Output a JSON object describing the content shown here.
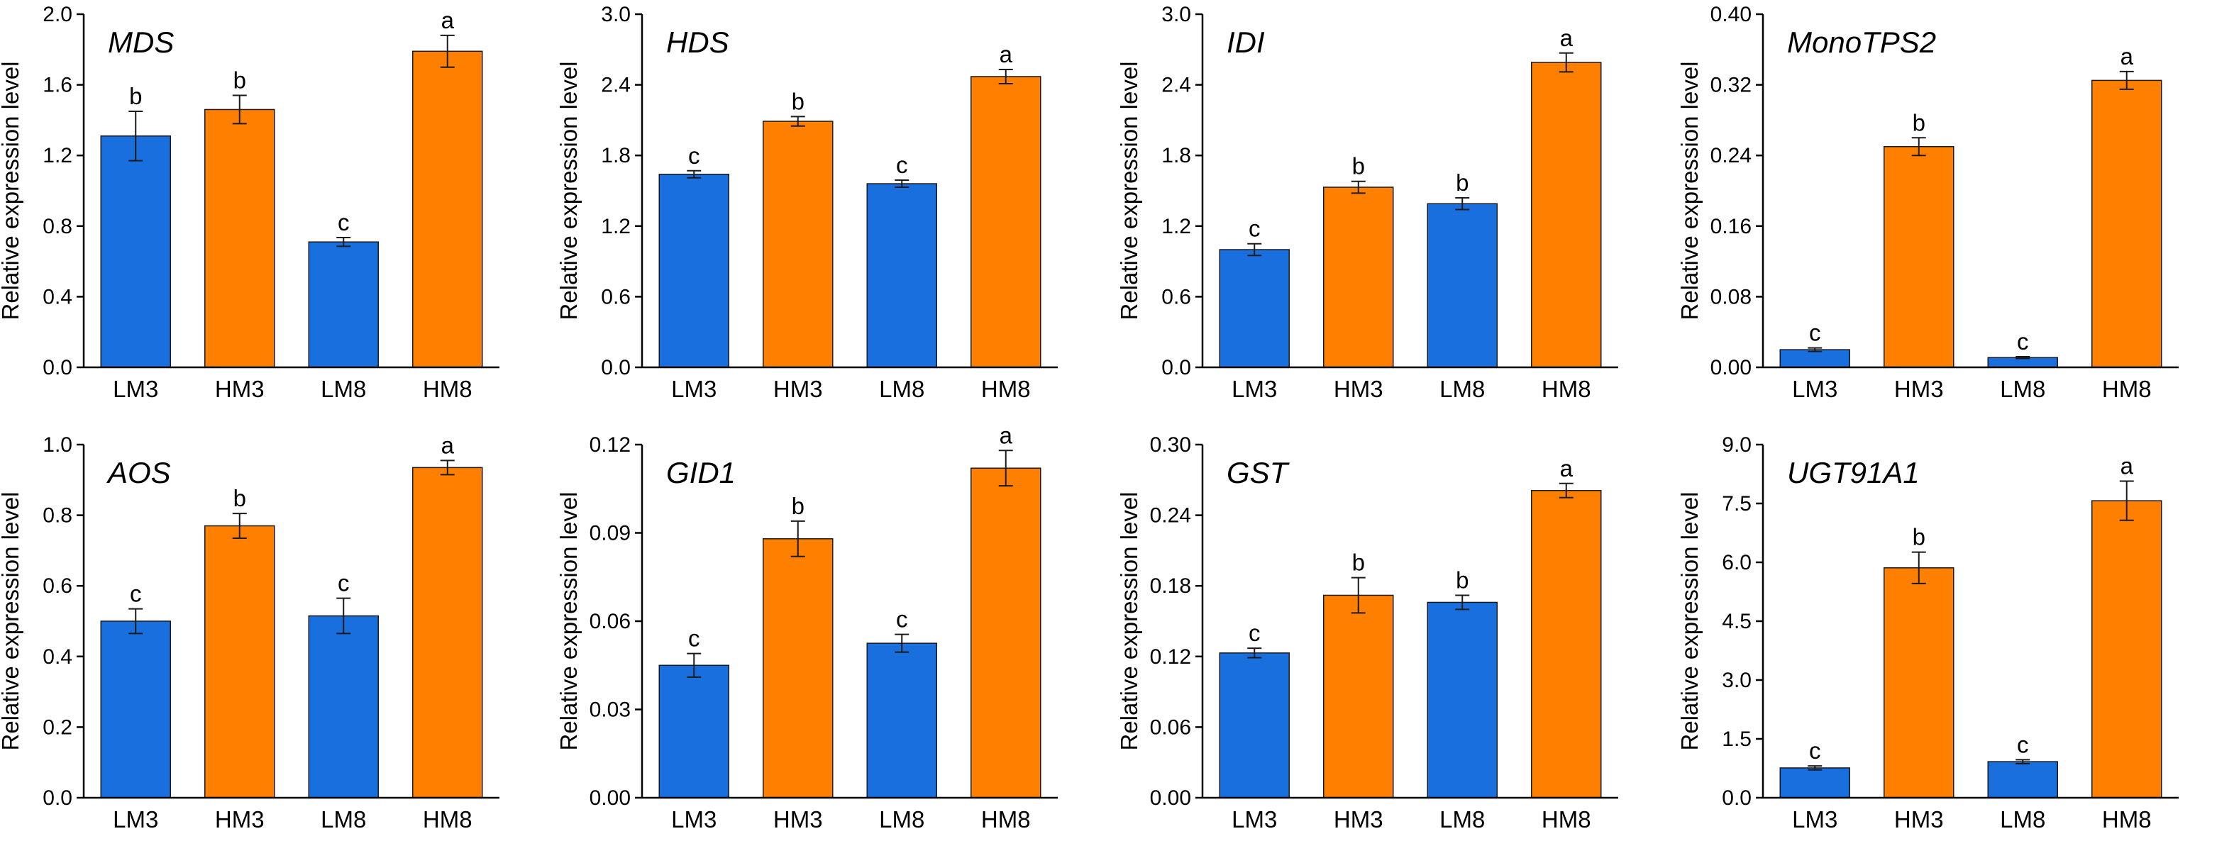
{
  "colors": {
    "low": "#1a6fdf",
    "high": "#ff8000"
  },
  "chart_data": [
    {
      "type": "bar",
      "title": "MDS",
      "ylabel": "Relative expression level",
      "categories": [
        "LM3",
        "HM3",
        "LM8",
        "HM8"
      ],
      "group": [
        "low",
        "high",
        "low",
        "high"
      ],
      "values": [
        1.31,
        1.46,
        0.71,
        1.79
      ],
      "errors": [
        0.14,
        0.08,
        0.025,
        0.09
      ],
      "significance": [
        "b",
        "b",
        "c",
        "a"
      ],
      "ylim": [
        0,
        2.0
      ],
      "yticks": [
        "0.0",
        "0.4",
        "0.8",
        "1.2",
        "1.6",
        "2.0"
      ]
    },
    {
      "type": "bar",
      "title": "HDS",
      "ylabel": "Relative expression level",
      "categories": [
        "LM3",
        "HM3",
        "LM8",
        "HM8"
      ],
      "group": [
        "low",
        "high",
        "low",
        "high"
      ],
      "values": [
        1.64,
        2.09,
        1.56,
        2.47
      ],
      "errors": [
        0.03,
        0.04,
        0.03,
        0.06
      ],
      "significance": [
        "c",
        "b",
        "c",
        "a"
      ],
      "ylim": [
        0,
        3.0
      ],
      "yticks": [
        "0.0",
        "0.6",
        "1.2",
        "1.8",
        "2.4",
        "3.0"
      ]
    },
    {
      "type": "bar",
      "title": "IDI",
      "ylabel": "Relative expression level",
      "categories": [
        "LM3",
        "HM3",
        "LM8",
        "HM8"
      ],
      "group": [
        "low",
        "high",
        "low",
        "high"
      ],
      "values": [
        1.0,
        1.53,
        1.39,
        2.59
      ],
      "errors": [
        0.05,
        0.05,
        0.05,
        0.08
      ],
      "significance": [
        "c",
        "b",
        "b",
        "a"
      ],
      "ylim": [
        0,
        3.0
      ],
      "yticks": [
        "0.0",
        "0.6",
        "1.2",
        "1.8",
        "2.4",
        "3.0"
      ]
    },
    {
      "type": "bar",
      "title": "MonoTPS2",
      "ylabel": "Relative expression level",
      "categories": [
        "LM3",
        "HM3",
        "LM8",
        "HM8"
      ],
      "group": [
        "low",
        "high",
        "low",
        "high"
      ],
      "values": [
        0.02,
        0.25,
        0.011,
        0.325
      ],
      "errors": [
        0.002,
        0.01,
        0.001,
        0.01
      ],
      "significance": [
        "c",
        "b",
        "c",
        "a"
      ],
      "ylim": [
        0,
        0.4
      ],
      "yticks": [
        "0.00",
        "0.08",
        "0.16",
        "0.24",
        "0.32",
        "0.40"
      ]
    },
    {
      "type": "bar",
      "title": "AOS",
      "ylabel": "Relative expression level",
      "categories": [
        "LM3",
        "HM3",
        "LM8",
        "HM8"
      ],
      "group": [
        "low",
        "high",
        "low",
        "high"
      ],
      "values": [
        0.5,
        0.77,
        0.515,
        0.935
      ],
      "errors": [
        0.035,
        0.035,
        0.05,
        0.02
      ],
      "significance": [
        "c",
        "b",
        "c",
        "a"
      ],
      "ylim": [
        0,
        1.0
      ],
      "yticks": [
        "0.0",
        "0.2",
        "0.4",
        "0.6",
        "0.8",
        "1.0"
      ]
    },
    {
      "type": "bar",
      "title": "GID1",
      "ylabel": "Relative expression level",
      "categories": [
        "LM3",
        "HM3",
        "LM8",
        "HM8"
      ],
      "group": [
        "low",
        "high",
        "low",
        "high"
      ],
      "values": [
        0.045,
        0.088,
        0.0525,
        0.112
      ],
      "errors": [
        0.004,
        0.006,
        0.003,
        0.006
      ],
      "significance": [
        "c",
        "b",
        "c",
        "a"
      ],
      "ylim": [
        0,
        0.12
      ],
      "yticks": [
        "0.00",
        "0.03",
        "0.06",
        "0.09",
        "0.12"
      ]
    },
    {
      "type": "bar",
      "title": "GST",
      "ylabel": "Relative expression level",
      "categories": [
        "LM3",
        "HM3",
        "LM8",
        "HM8"
      ],
      "group": [
        "low",
        "high",
        "low",
        "high"
      ],
      "values": [
        0.123,
        0.172,
        0.166,
        0.261
      ],
      "errors": [
        0.004,
        0.015,
        0.006,
        0.006
      ],
      "significance": [
        "c",
        "b",
        "b",
        "a"
      ],
      "ylim": [
        0,
        0.3
      ],
      "yticks": [
        "0.00",
        "0.06",
        "0.12",
        "0.18",
        "0.24",
        "0.30"
      ]
    },
    {
      "type": "bar",
      "title": "UGT91A1",
      "ylabel": "Relative expression level",
      "categories": [
        "LM3",
        "HM3",
        "LM8",
        "HM8"
      ],
      "group": [
        "low",
        "high",
        "low",
        "high"
      ],
      "values": [
        0.76,
        5.86,
        0.92,
        7.57
      ],
      "errors": [
        0.05,
        0.4,
        0.05,
        0.5
      ],
      "significance": [
        "c",
        "b",
        "c",
        "a"
      ],
      "ylim": [
        0,
        9.0
      ],
      "yticks": [
        "0.0",
        "1.5",
        "3.0",
        "4.5",
        "6.0",
        "7.5",
        "9.0"
      ]
    }
  ]
}
